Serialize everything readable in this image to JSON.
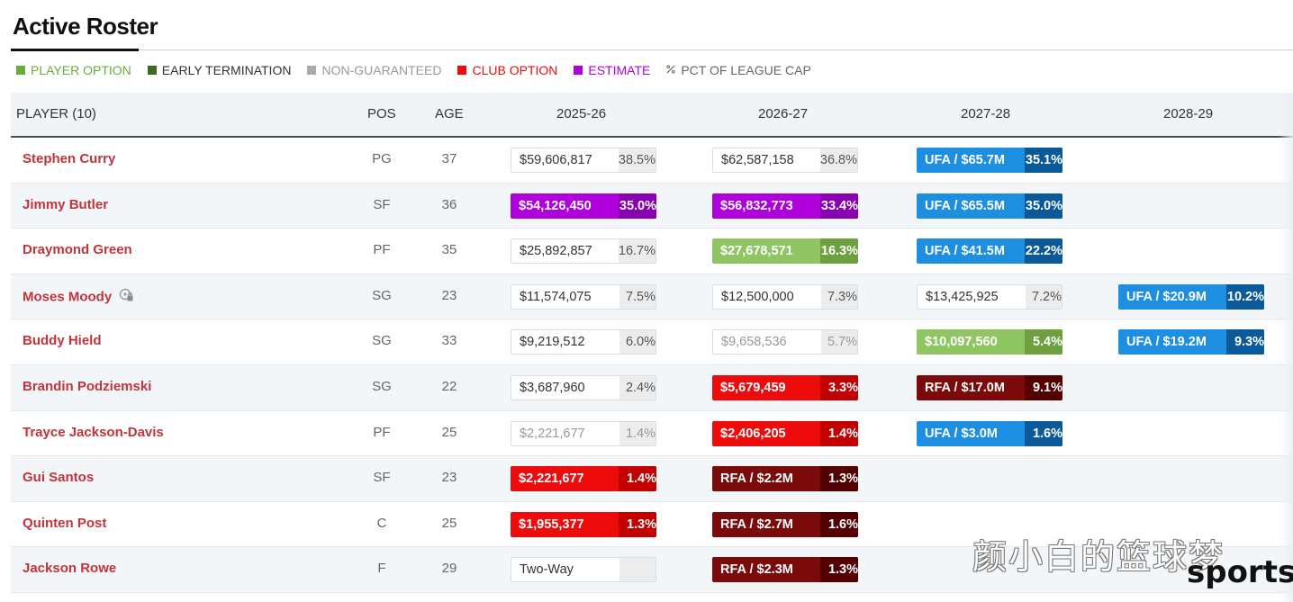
{
  "header": {
    "title": "Active Roster"
  },
  "legend": [
    {
      "label": "PLAYER OPTION",
      "color": "#6aab3e",
      "text_color": "#6aab3e"
    },
    {
      "label": "EARLY TERMINATION",
      "color": "#3d6a1c",
      "text_color": "#333333"
    },
    {
      "label": "NON-GUARANTEED",
      "color": "#aaaaaa",
      "text_color": "#999999"
    },
    {
      "label": "CLUB OPTION",
      "color": "#ee0b0b",
      "text_color": "#ee0b0b"
    },
    {
      "label": "ESTIMATE",
      "color": "#b000de",
      "text_color": "#b000de"
    },
    {
      "label": "PCT OF LEAGUE CAP",
      "color": "",
      "text_color": "#666666",
      "icon": "percent-icon"
    }
  ],
  "table": {
    "headers": {
      "player": "PLAYER (10)",
      "pos": "POS",
      "age": "AGE",
      "y1": "2025-26",
      "y2": "2026-27",
      "y3": "2027-28",
      "y4": "2028-29"
    },
    "rows": [
      {
        "name": "Stephen Curry",
        "pos": "PG",
        "age": "37",
        "cells": [
          {
            "type": "plain",
            "amount": "$59,606,817",
            "pct": "38.5%"
          },
          {
            "type": "plain",
            "amount": "$62,587,158",
            "pct": "36.8%"
          },
          {
            "type": "ufa",
            "amount": "UFA / $65.7M",
            "pct": "35.1%"
          },
          null
        ]
      },
      {
        "name": "Jimmy Butler",
        "pos": "SF",
        "age": "36",
        "cells": [
          {
            "type": "estimate",
            "amount": "$54,126,450",
            "pct": "35.0%"
          },
          {
            "type": "estimate",
            "amount": "$56,832,773",
            "pct": "33.4%"
          },
          {
            "type": "ufa",
            "amount": "UFA / $65.5M",
            "pct": "35.0%"
          },
          null
        ]
      },
      {
        "name": "Draymond Green",
        "pos": "PF",
        "age": "35",
        "cells": [
          {
            "type": "plain",
            "amount": "$25,892,857",
            "pct": "16.7%"
          },
          {
            "type": "option",
            "amount": "$27,678,571",
            "pct": "16.3%"
          },
          {
            "type": "ufa",
            "amount": "UFA / $41.5M",
            "pct": "22.2%"
          },
          null
        ]
      },
      {
        "name": "Moses Moody",
        "pos": "SG",
        "age": "23",
        "badge": true,
        "cells": [
          {
            "type": "plain",
            "amount": "$11,574,075",
            "pct": "7.5%"
          },
          {
            "type": "plain",
            "amount": "$12,500,000",
            "pct": "7.3%"
          },
          {
            "type": "plain",
            "amount": "$13,425,925",
            "pct": "7.2%"
          },
          {
            "type": "ufa",
            "amount": "UFA / $20.9M",
            "pct": "10.2%"
          }
        ]
      },
      {
        "name": "Buddy Hield",
        "pos": "SG",
        "age": "33",
        "cells": [
          {
            "type": "plain",
            "amount": "$9,219,512",
            "pct": "6.0%"
          },
          {
            "type": "ng",
            "amount": "$9,658,536",
            "pct": "5.7%"
          },
          {
            "type": "option",
            "amount": "$10,097,560",
            "pct": "5.4%"
          },
          {
            "type": "ufa",
            "amount": "UFA / $19.2M",
            "pct": "9.3%"
          }
        ]
      },
      {
        "name": "Brandin Podziemski",
        "pos": "SG",
        "age": "22",
        "cells": [
          {
            "type": "plain",
            "amount": "$3,687,960",
            "pct": "2.4%"
          },
          {
            "type": "club",
            "amount": "$5,679,459",
            "pct": "3.3%"
          },
          {
            "type": "rfa",
            "amount": "RFA / $17.0M",
            "pct": "9.1%"
          },
          null
        ]
      },
      {
        "name": "Trayce Jackson-Davis",
        "pos": "PF",
        "age": "25",
        "cells": [
          {
            "type": "ng",
            "amount": "$2,221,677",
            "pct": "1.4%"
          },
          {
            "type": "club",
            "amount": "$2,406,205",
            "pct": "1.4%"
          },
          {
            "type": "ufa",
            "amount": "UFA / $3.0M",
            "pct": "1.6%"
          },
          null
        ]
      },
      {
        "name": "Gui Santos",
        "pos": "SF",
        "age": "23",
        "cells": [
          {
            "type": "club",
            "amount": "$2,221,677",
            "pct": "1.4%"
          },
          {
            "type": "rfa",
            "amount": "RFA / $2.2M",
            "pct": "1.3%"
          },
          null,
          null
        ]
      },
      {
        "name": "Quinten Post",
        "pos": "C",
        "age": "25",
        "cells": [
          {
            "type": "club",
            "amount": "$1,955,377",
            "pct": "1.3%"
          },
          {
            "type": "rfa",
            "amount": "RFA / $2.7M",
            "pct": "1.6%"
          },
          null,
          null
        ]
      },
      {
        "name": "Jackson Rowe",
        "pos": "F",
        "age": "29",
        "cells": [
          {
            "type": "plain",
            "amount": "Two-Way",
            "pct": ""
          },
          {
            "type": "rfa",
            "amount": "RFA / $2.3M",
            "pct": "1.3%"
          },
          null,
          null
        ]
      }
    ]
  },
  "watermark": {
    "line1": "颜小白的篮球梦",
    "line2": "sports"
  }
}
